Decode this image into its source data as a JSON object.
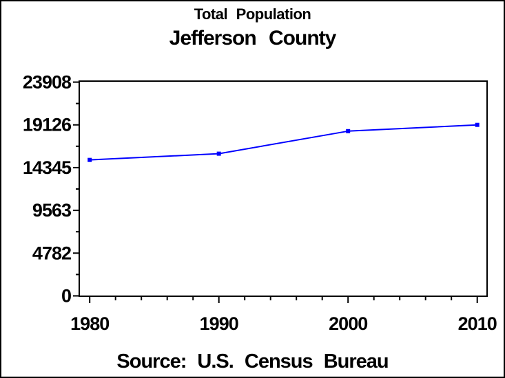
{
  "chart_data": {
    "type": "line",
    "title": "Total Population",
    "subtitle": "Jefferson County",
    "footnote": "Source: U.S. Census Bureau",
    "series": [
      {
        "name": "Total Population",
        "x": [
          1980,
          1990,
          2000,
          2010
        ],
        "values": [
          15207,
          15905,
          18426,
          19126
        ]
      }
    ],
    "x_ticks": [
      1980,
      1990,
      2000,
      2010
    ],
    "x_tick_labels": [
      "1980",
      "1990",
      "2000",
      "2010"
    ],
    "x_minor_step_years": 2,
    "xlim": [
      1979.2,
      2010.8
    ],
    "y_ticks": [
      0,
      4782,
      9563,
      14345,
      19126,
      23908
    ],
    "y_tick_labels": [
      "0",
      "4782",
      "9563",
      "14345",
      "19126",
      "23908"
    ],
    "ylim": [
      0,
      23908
    ],
    "xlabel": "",
    "ylabel": "",
    "grid": false,
    "legend": "none",
    "frame": true,
    "line_color": "#0000ff",
    "marker": "square",
    "axis_color": "#000000",
    "background_color": "#ffffff"
  }
}
